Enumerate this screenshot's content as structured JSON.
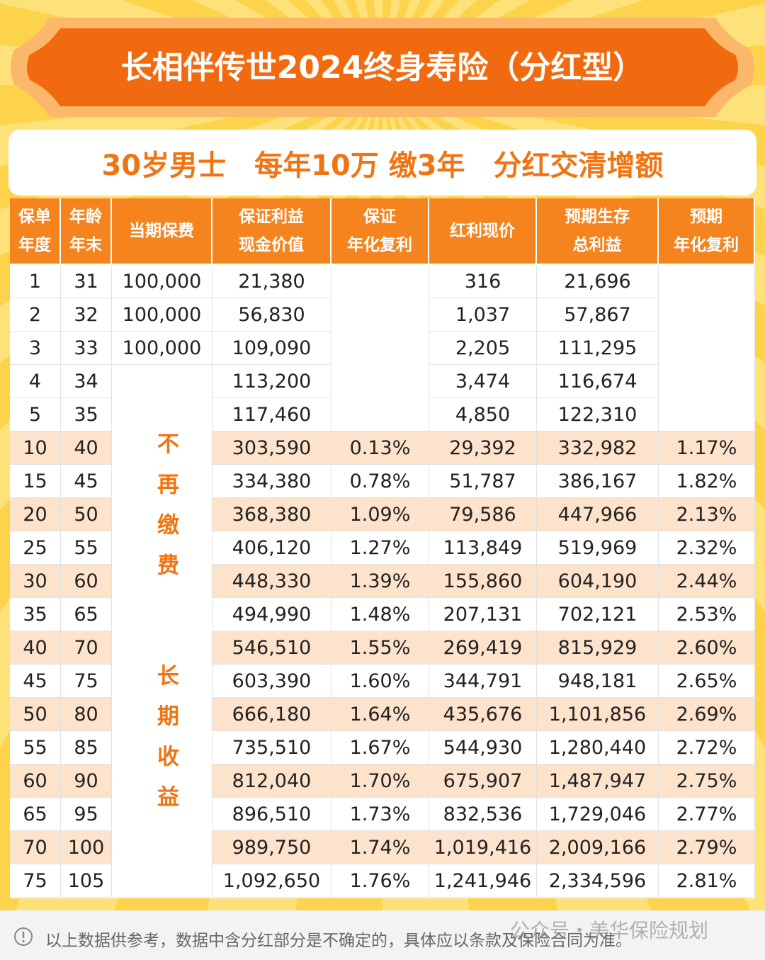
{
  "header": {
    "title": "长相伴传世2024终身寿险（分红型）",
    "subtitle": "30岁男士　每年10万 缴3年　分红交清增额"
  },
  "table": {
    "columns": [
      "year",
      "age",
      "premium",
      "cash_value",
      "guaranteed_rate",
      "bonus",
      "total",
      "expected_rate"
    ],
    "headers": [
      [
        "保单",
        "年度"
      ],
      [
        "年龄",
        "年末"
      ],
      [
        "当期保费"
      ],
      [
        "保证利益",
        "现金价值"
      ],
      [
        "保证",
        "年化复利"
      ],
      [
        "红利现价"
      ],
      [
        "预期生存",
        "总利益"
      ],
      [
        "预期",
        "年化复利"
      ]
    ],
    "rows": [
      {
        "year": "1",
        "age": "31",
        "premium": "100,000",
        "cash_value": "21,380",
        "bonus": "316",
        "total": "21,696"
      },
      {
        "year": "2",
        "age": "32",
        "premium": "100,000",
        "cash_value": "56,830",
        "bonus": "1,037",
        "total": "57,867"
      },
      {
        "year": "3",
        "age": "33",
        "premium": "100,000",
        "cash_value": "109,090",
        "bonus": "2,205",
        "total": "111,295"
      },
      {
        "year": "4",
        "age": "34",
        "cash_value": "113,200",
        "bonus": "3,474",
        "total": "116,674"
      },
      {
        "year": "5",
        "age": "35",
        "cash_value": "117,460",
        "bonus": "4,850",
        "total": "122,310"
      },
      {
        "year": "10",
        "age": "40",
        "cash_value": "303,590",
        "guaranteed_rate": "0.13%",
        "bonus": "29,392",
        "total": "332,982",
        "expected_rate": "1.17%"
      },
      {
        "year": "15",
        "age": "45",
        "cash_value": "334,380",
        "guaranteed_rate": "0.78%",
        "bonus": "51,787",
        "total": "386,167",
        "expected_rate": "1.82%"
      },
      {
        "year": "20",
        "age": "50",
        "cash_value": "368,380",
        "guaranteed_rate": "1.09%",
        "bonus": "79,586",
        "total": "447,966",
        "expected_rate": "2.13%"
      },
      {
        "year": "25",
        "age": "55",
        "cash_value": "406,120",
        "guaranteed_rate": "1.27%",
        "bonus": "113,849",
        "total": "519,969",
        "expected_rate": "2.32%"
      },
      {
        "year": "30",
        "age": "60",
        "cash_value": "448,330",
        "guaranteed_rate": "1.39%",
        "bonus": "155,860",
        "total": "604,190",
        "expected_rate": "2.44%"
      },
      {
        "year": "35",
        "age": "65",
        "cash_value": "494,990",
        "guaranteed_rate": "1.48%",
        "bonus": "207,131",
        "total": "702,121",
        "expected_rate": "2.53%"
      },
      {
        "year": "40",
        "age": "70",
        "cash_value": "546,510",
        "guaranteed_rate": "1.55%",
        "bonus": "269,419",
        "total": "815,929",
        "expected_rate": "2.60%"
      },
      {
        "year": "45",
        "age": "75",
        "cash_value": "603,390",
        "guaranteed_rate": "1.60%",
        "bonus": "344,791",
        "total": "948,181",
        "expected_rate": "2.65%"
      },
      {
        "year": "50",
        "age": "80",
        "cash_value": "666,180",
        "guaranteed_rate": "1.64%",
        "bonus": "435,676",
        "total": "1,101,856",
        "expected_rate": "2.69%"
      },
      {
        "year": "55",
        "age": "85",
        "cash_value": "735,510",
        "guaranteed_rate": "1.67%",
        "bonus": "544,930",
        "total": "1,280,440",
        "expected_rate": "2.72%"
      },
      {
        "year": "60",
        "age": "90",
        "cash_value": "812,040",
        "guaranteed_rate": "1.70%",
        "bonus": "675,907",
        "total": "1,487,947",
        "expected_rate": "2.75%"
      },
      {
        "year": "65",
        "age": "95",
        "cash_value": "896,510",
        "guaranteed_rate": "1.73%",
        "bonus": "832,536",
        "total": "1,729,046",
        "expected_rate": "2.77%"
      },
      {
        "year": "70",
        "age": "100",
        "cash_value": "989,750",
        "guaranteed_rate": "1.74%",
        "bonus": "1,019,416",
        "total": "2,009,166",
        "expected_rate": "2.79%"
      },
      {
        "year": "75",
        "age": "105",
        "cash_value": "1,092,650",
        "guaranteed_rate": "1.76%",
        "bonus": "1,241,946",
        "total": "2,334,596",
        "expected_rate": "2.81%"
      }
    ],
    "notes": [
      "不再缴费",
      "长期收益"
    ]
  },
  "footer": {
    "disclaimer": "以上数据供参考，数据中含分红部分是不确定的，具体应以条款及保险合同为准。",
    "watermark": "公众号・美华保险规划"
  }
}
